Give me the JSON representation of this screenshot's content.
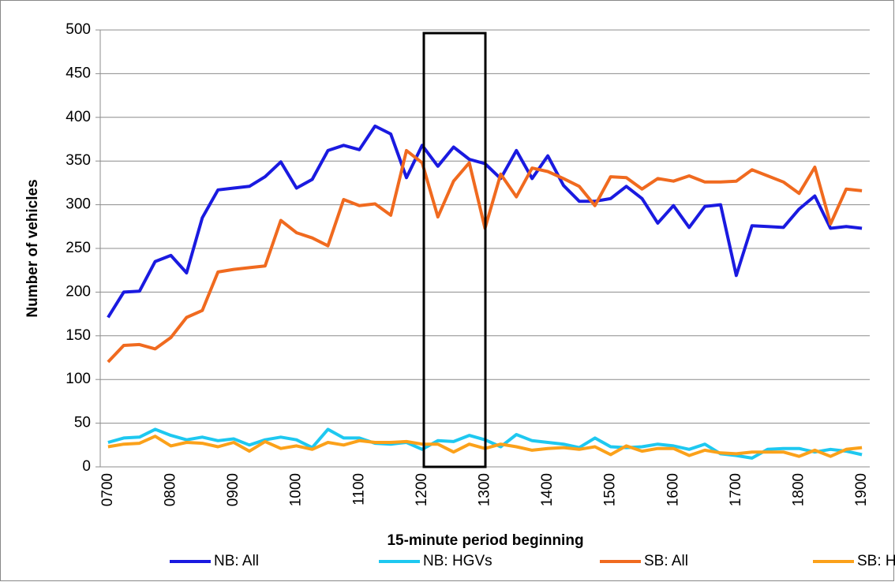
{
  "chart_data": {
    "type": "line",
    "x_label": "15-minute period beginning",
    "y_label": "Number of vehicles",
    "categories": [
      "0700",
      null,
      null,
      null,
      "0800",
      null,
      null,
      null,
      "0900",
      null,
      null,
      null,
      "1000",
      null,
      null,
      null,
      "1100",
      null,
      null,
      null,
      "1200",
      null,
      null,
      null,
      "1300",
      null,
      null,
      null,
      "1400",
      null,
      null,
      null,
      "1500",
      null,
      null,
      null,
      "1600",
      null,
      null,
      null,
      "1700",
      null,
      null,
      null,
      "1800",
      null,
      null,
      null,
      "1900"
    ],
    "series": [
      {
        "name": "NB: All",
        "color": "#1a1ae0",
        "values": [
          171,
          200,
          201,
          235,
          242,
          222,
          285,
          317,
          319,
          321,
          332,
          349,
          319,
          329,
          362,
          368,
          363,
          390,
          381,
          331,
          368,
          344,
          366,
          352,
          347,
          330,
          362,
          330,
          356,
          322,
          304,
          304,
          307,
          321,
          307,
          279,
          299,
          274,
          298,
          300,
          219,
          276,
          275,
          274,
          295,
          310,
          273,
          275,
          273
        ]
      },
      {
        "name": "NB: HGVs",
        "color": "#1ec8f0",
        "values": [
          28,
          33,
          34,
          43,
          36,
          31,
          34,
          30,
          32,
          25,
          31,
          34,
          31,
          22,
          43,
          33,
          33,
          27,
          26,
          28,
          20,
          30,
          29,
          36,
          31,
          23,
          37,
          30,
          28,
          26,
          22,
          33,
          23,
          22,
          23,
          26,
          24,
          20,
          26,
          15,
          13,
          10,
          20,
          21,
          21,
          17,
          20,
          18,
          14
        ]
      },
      {
        "name": "SB: All",
        "color": "#f06a1f",
        "values": [
          120,
          139,
          140,
          135,
          148,
          171,
          179,
          223,
          226,
          228,
          230,
          282,
          268,
          262,
          253,
          306,
          299,
          301,
          288,
          362,
          348,
          286,
          327,
          348,
          273,
          335,
          309,
          342,
          338,
          330,
          321,
          299,
          332,
          331,
          318,
          330,
          327,
          333,
          326,
          326,
          327,
          340,
          333,
          326,
          313,
          343,
          278,
          318,
          316
        ]
      },
      {
        "name": "SB: HGVs",
        "color": "#fba11a",
        "values": [
          23,
          26,
          27,
          35,
          24,
          28,
          27,
          23,
          28,
          18,
          29,
          21,
          24,
          20,
          28,
          25,
          30,
          28,
          28,
          29,
          26,
          26,
          17,
          26,
          21,
          26,
          23,
          19,
          21,
          22,
          20,
          23,
          14,
          24,
          18,
          21,
          21,
          13,
          19,
          16,
          15,
          17,
          17,
          17,
          12,
          19,
          12,
          20,
          22
        ]
      }
    ],
    "ylim": [
      0,
      500
    ],
    "yticks": [
      0,
      50,
      100,
      150,
      200,
      250,
      300,
      350,
      400,
      450,
      500
    ],
    "grid": true,
    "legend": "bottom"
  }
}
